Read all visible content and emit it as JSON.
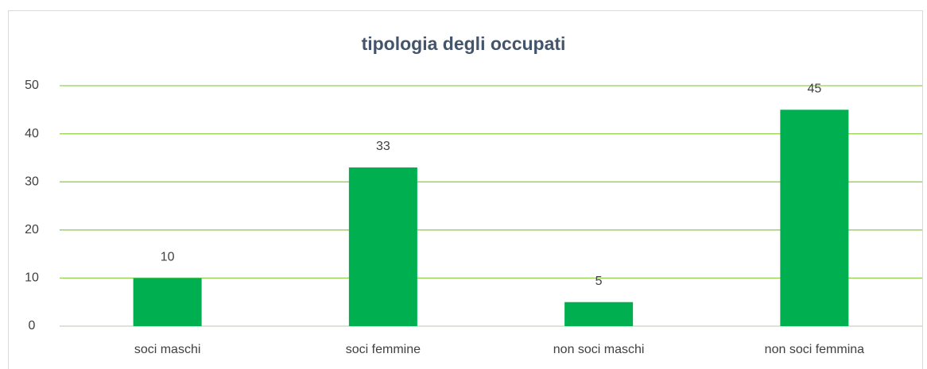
{
  "chart_data": {
    "type": "bar",
    "title": "tipologia degli occupati",
    "categories": [
      "soci maschi",
      "soci femmine",
      "non soci maschi",
      "non soci femmina"
    ],
    "values": [
      10,
      33,
      5,
      45
    ],
    "color": "#00b050",
    "ylim": [
      0,
      50
    ],
    "yticks": [
      0,
      10,
      20,
      30,
      40,
      50
    ],
    "grid": true,
    "data_labels": true
  }
}
